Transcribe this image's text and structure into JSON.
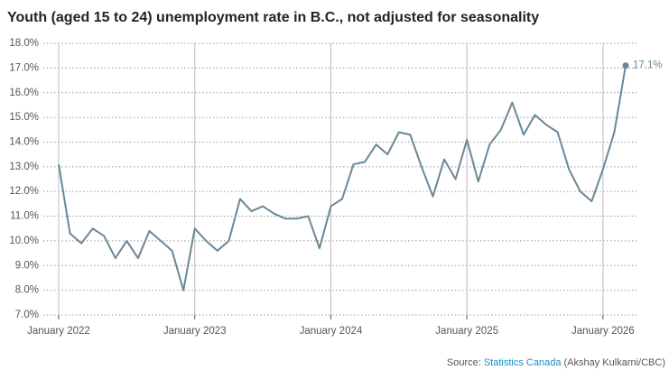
{
  "chart_data": {
    "type": "line",
    "title": "Youth (aged 15 to 24) unemployment rate in B.C., not adjusted for seasonality",
    "categories": [
      "January 2022",
      null,
      null,
      null,
      null,
      null,
      null,
      null,
      null,
      null,
      null,
      null,
      "January 2023",
      null,
      null,
      null,
      null,
      null,
      null,
      null,
      null,
      null,
      null,
      null,
      "January 2024",
      null,
      null,
      null,
      null,
      null,
      null,
      null,
      null,
      null,
      null,
      null,
      "January 2025",
      null,
      null,
      null,
      null,
      null,
      null,
      null,
      null,
      null,
      null,
      null,
      "January 2026",
      null,
      null
    ],
    "series": [
      {
        "name": null,
        "color": "#6a8898",
        "values": [
          13.1,
          10.3,
          9.9,
          10.5,
          10.2,
          9.3,
          10.0,
          9.3,
          10.4,
          10.0,
          9.6,
          8.0,
          10.5,
          10.0,
          9.6,
          10.0,
          11.7,
          11.2,
          11.4,
          11.1,
          10.9,
          10.9,
          11.0,
          9.7,
          11.4,
          11.7,
          13.1,
          13.2,
          13.9,
          13.5,
          14.4,
          14.3,
          13.0,
          11.8,
          13.3,
          12.5,
          14.1,
          12.4,
          13.9,
          14.5,
          15.6,
          14.3,
          15.1,
          14.7,
          14.4,
          12.9,
          12.0,
          11.6,
          12.9,
          14.4,
          17.1
        ],
        "value_labels": [
          null,
          null,
          null,
          null,
          null,
          null,
          null,
          null,
          null,
          null,
          null,
          null,
          null,
          null,
          null,
          null,
          null,
          null,
          null,
          null,
          null,
          null,
          null,
          null,
          null,
          null,
          null,
          null,
          null,
          null,
          null,
          null,
          null,
          null,
          null,
          null,
          null,
          null,
          null,
          null,
          null,
          null,
          null,
          null,
          null,
          null,
          null,
          null,
          null,
          null,
          "17.1%"
        ]
      }
    ],
    "ylim": [
      7,
      18
    ],
    "yticks": [
      {
        "value": 7,
        "label": "7.0%"
      },
      {
        "value": 8,
        "label": "8.0%"
      },
      {
        "value": 9,
        "label": "9.0%"
      },
      {
        "value": 10,
        "label": "10.0%"
      },
      {
        "value": 11,
        "label": "11.0%"
      },
      {
        "value": 12,
        "label": "12.0%"
      },
      {
        "value": 13,
        "label": "13.0%"
      },
      {
        "value": 14,
        "label": "14.0%"
      },
      {
        "value": 15,
        "label": "15.0%"
      },
      {
        "value": 16,
        "label": "16.0%"
      },
      {
        "value": 17,
        "label": "17.0%"
      },
      {
        "value": 18,
        "label": "18.0%"
      }
    ],
    "grid": true,
    "source_prefix": "Source:",
    "source_link": "Statistics Canada",
    "source_credit": "(Akshay Kulkarni/CBC)"
  }
}
